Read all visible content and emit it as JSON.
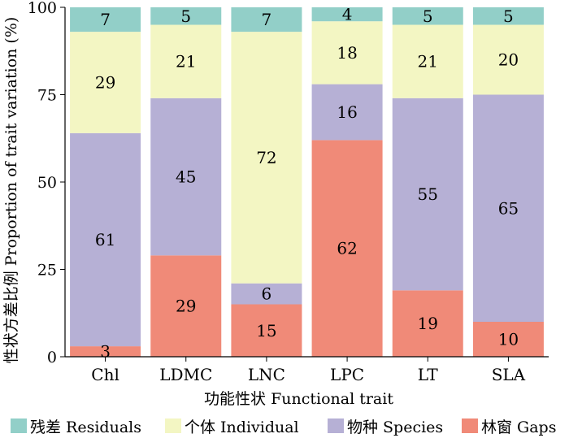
{
  "chart_data": {
    "type": "bar",
    "stacked": true,
    "categories": [
      "Chl",
      "LDMC",
      "LNC",
      "LPC",
      "LT",
      "SLA"
    ],
    "series": [
      {
        "name": "林窗 Gaps",
        "color": "#f08a78",
        "values": [
          3,
          29,
          15,
          62,
          19,
          10
        ]
      },
      {
        "name": "物种 Species",
        "color": "#b6b0d5",
        "values": [
          61,
          45,
          6,
          16,
          55,
          65
        ]
      },
      {
        "name": "个体 Individual",
        "color": "#f3f6c3",
        "values": [
          29,
          21,
          72,
          18,
          21,
          20
        ]
      },
      {
        "name": "残差 Residuals",
        "color": "#92cfc8",
        "values": [
          7,
          5,
          7,
          4,
          5,
          5
        ]
      }
    ],
    "legend_order": [
      "残差 Residuals",
      "个体 Individual",
      "物种 Species",
      "林窗 Gaps"
    ],
    "xlabel": "功能性状 Functional trait",
    "ylabel": "性状方差比例 Proportion of trait variation (%)",
    "ylim": [
      0,
      100
    ],
    "yticks": [
      "0",
      "25",
      "50",
      "75",
      "100"
    ],
    "legend_position": "bottom",
    "grid": false
  }
}
